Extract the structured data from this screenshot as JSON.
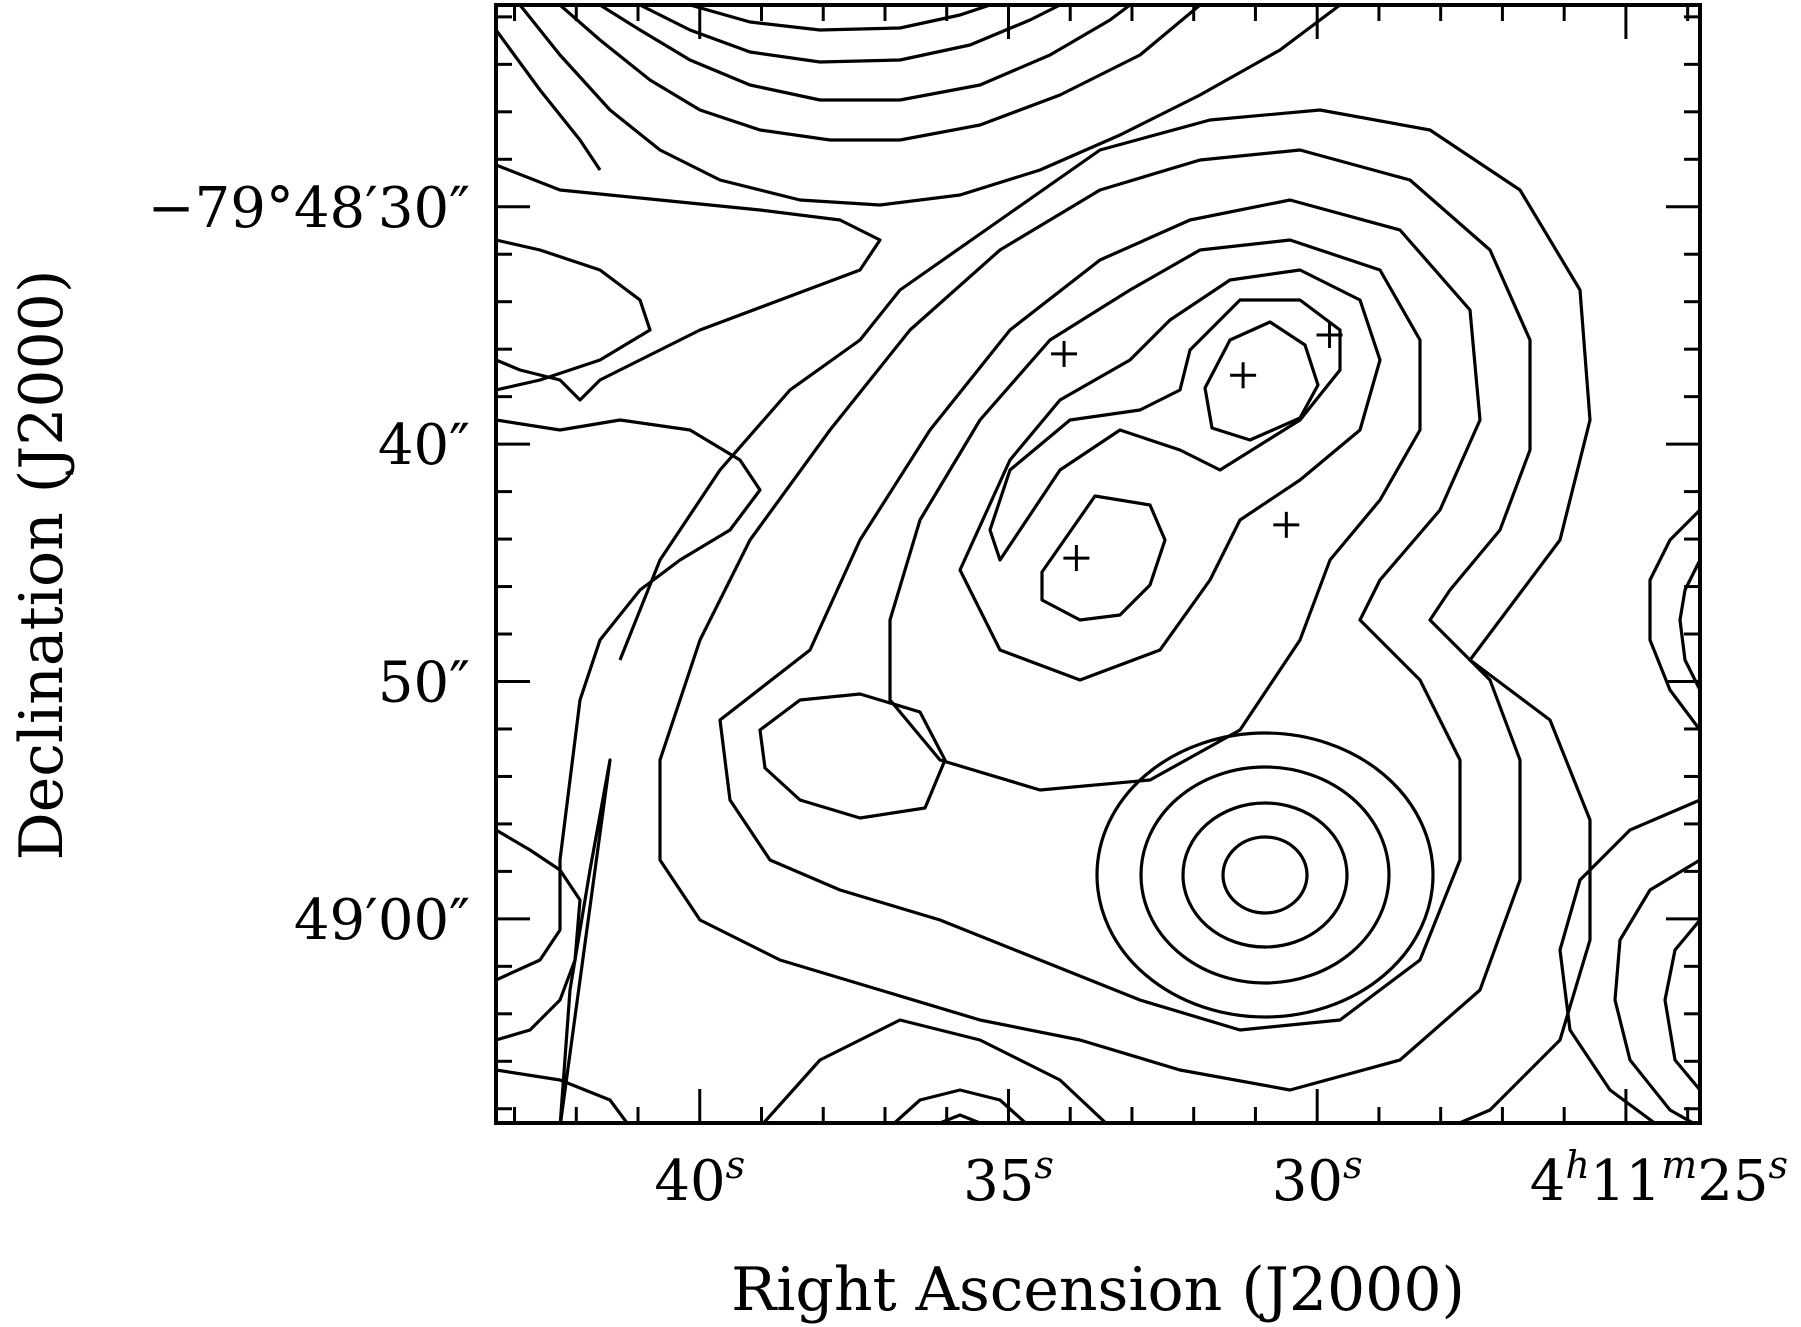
{
  "chart_data": {
    "type": "contour",
    "xlabel": "Right Ascension (J2000)",
    "ylabel": "Declination (J2000)",
    "x_ticks": [
      {
        "value": 40,
        "label": "40",
        "sup": "s"
      },
      {
        "value": 35,
        "label": "35",
        "sup": "s"
      },
      {
        "value": 30,
        "label": "30",
        "sup": "s"
      },
      {
        "value": 25,
        "label": "4h11m25s"
      }
    ],
    "y_ticks": [
      {
        "value": 30,
        "label": "−79°48′30″"
      },
      {
        "value": 40,
        "label": "40″"
      },
      {
        "value": 50,
        "label": "50″"
      },
      {
        "value": 60,
        "label": "49′00″"
      }
    ],
    "x_range_seconds": [
      43.3,
      23.8
    ],
    "y_range_arcsec": [
      21.5,
      68.6
    ],
    "grid": false,
    "contour_peaks": [
      {
        "ra_s": 31.1,
        "dec_arcsec": 57.5
      },
      {
        "ra_s": 36.5,
        "dec_arcsec": 52.5
      },
      {
        "ra_s": 33.8,
        "dec_arcsec": 44.5
      },
      {
        "ra_s": 31.0,
        "dec_arcsec": 37.0
      },
      {
        "ra_s": 36.5,
        "dec_arcsec": 21.5
      },
      {
        "ra_s": 24.0,
        "dec_arcsec": 62.0
      },
      {
        "ra_s": 24.0,
        "dec_arcsec": 46.5
      },
      {
        "ra_s": 34.8,
        "dec_arcsec": 68.6
      }
    ],
    "markers": [
      {
        "ra_s": 33.9,
        "dec_arcsec": 44.8
      },
      {
        "ra_s": 31.2,
        "dec_arcsec": 37.1
      },
      {
        "ra_s": 34.1,
        "dec_arcsec": 36.2
      },
      {
        "ra_s": 29.8,
        "dec_arcsec": 35.4
      },
      {
        "ra_s": 30.5,
        "dec_arcsec": 43.4
      }
    ]
  }
}
